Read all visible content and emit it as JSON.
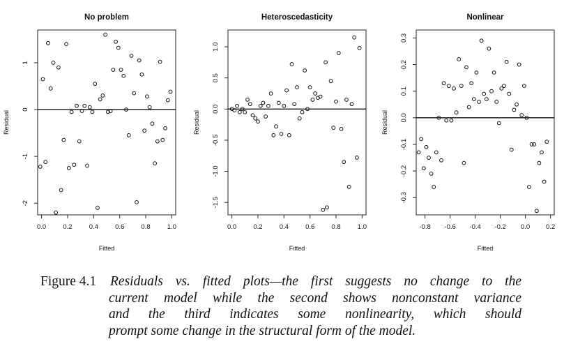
{
  "chart_data": [
    {
      "type": "scatter",
      "title": "No problem",
      "xlabel": "Fitted",
      "ylabel": "Residual",
      "xlim": [
        -0.03,
        1.03
      ],
      "ylim": [
        -2.25,
        1.7
      ],
      "xticks": [
        "0.0",
        "0.2",
        "0.4",
        "0.6",
        "0.8",
        "1.0"
      ],
      "xtick_values": [
        0,
        0.2,
        0.4,
        0.6,
        0.8,
        1.0
      ],
      "yticks": [
        "-2",
        "-1",
        "0",
        "1"
      ],
      "ytick_values": [
        -2,
        -1,
        0,
        1
      ],
      "reference_line_y": 0,
      "points": [
        [
          -0.01,
          -1.22
        ],
        [
          0.01,
          0.65
        ],
        [
          0.03,
          -1.12
        ],
        [
          0.05,
          1.42
        ],
        [
          0.07,
          0.45
        ],
        [
          0.09,
          1.0
        ],
        [
          0.11,
          -2.2
        ],
        [
          0.13,
          0.9
        ],
        [
          0.15,
          -1.72
        ],
        [
          0.17,
          -0.65
        ],
        [
          0.19,
          1.4
        ],
        [
          0.21,
          -1.25
        ],
        [
          0.23,
          -0.05
        ],
        [
          0.25,
          -1.18
        ],
        [
          0.27,
          0.08
        ],
        [
          0.29,
          -0.68
        ],
        [
          0.31,
          -0.03
        ],
        [
          0.33,
          0.08
        ],
        [
          0.35,
          -1.2
        ],
        [
          0.37,
          0.05
        ],
        [
          0.39,
          -0.05
        ],
        [
          0.41,
          0.55
        ],
        [
          0.43,
          -2.1
        ],
        [
          0.45,
          0.22
        ],
        [
          0.47,
          0.3
        ],
        [
          0.49,
          1.6
        ],
        [
          0.51,
          -0.05
        ],
        [
          0.53,
          -0.03
        ],
        [
          0.55,
          0.85
        ],
        [
          0.57,
          1.45
        ],
        [
          0.59,
          1.32
        ],
        [
          0.61,
          0.85
        ],
        [
          0.63,
          0.72
        ],
        [
          0.65,
          0.0
        ],
        [
          0.67,
          -0.55
        ],
        [
          0.69,
          1.15
        ],
        [
          0.71,
          0.35
        ],
        [
          0.73,
          -1.98
        ],
        [
          0.75,
          1.05
        ],
        [
          0.77,
          0.75
        ],
        [
          0.79,
          -0.45
        ],
        [
          0.81,
          0.28
        ],
        [
          0.83,
          0.05
        ],
        [
          0.85,
          -0.3
        ],
        [
          0.87,
          -1.15
        ],
        [
          0.89,
          -0.68
        ],
        [
          0.91,
          1.02
        ],
        [
          0.93,
          -0.65
        ],
        [
          0.95,
          -0.4
        ],
        [
          0.97,
          0.2
        ],
        [
          0.99,
          0.38
        ]
      ]
    },
    {
      "type": "scatter",
      "title": "Heteroscedasticity",
      "xlabel": "Fitted",
      "ylabel": "Residual",
      "xlim": [
        -0.03,
        1.03
      ],
      "ylim": [
        -1.7,
        1.27
      ],
      "xticks": [
        "0.0",
        "0.2",
        "0.4",
        "0.6",
        "0.8",
        "1.0"
      ],
      "xtick_values": [
        0,
        0.2,
        0.4,
        0.6,
        0.8,
        1.0
      ],
      "yticks": [
        "-1.5",
        "-1.0",
        "-0.5",
        "0.0",
        "0.5",
        "1.0"
      ],
      "ytick_values": [
        -1.5,
        -1.0,
        -0.5,
        0.0,
        0.5,
        1.0
      ],
      "reference_line_y": 0,
      "points": [
        [
          0.0,
          0.0
        ],
        [
          0.02,
          -0.02
        ],
        [
          0.04,
          0.05
        ],
        [
          0.06,
          -0.05
        ],
        [
          0.08,
          0.0
        ],
        [
          0.1,
          -0.05
        ],
        [
          0.12,
          0.15
        ],
        [
          0.14,
          0.08
        ],
        [
          0.16,
          -0.1
        ],
        [
          0.18,
          -0.15
        ],
        [
          0.2,
          -0.2
        ],
        [
          0.22,
          0.05
        ],
        [
          0.24,
          0.1
        ],
        [
          0.26,
          -0.12
        ],
        [
          0.28,
          0.05
        ],
        [
          0.3,
          0.25
        ],
        [
          0.32,
          -0.42
        ],
        [
          0.34,
          -0.28
        ],
        [
          0.36,
          0.1
        ],
        [
          0.38,
          -0.4
        ],
        [
          0.4,
          0.05
        ],
        [
          0.42,
          0.3
        ],
        [
          0.44,
          -0.42
        ],
        [
          0.46,
          0.72
        ],
        [
          0.48,
          0.08
        ],
        [
          0.5,
          0.35
        ],
        [
          0.52,
          -0.15
        ],
        [
          0.54,
          -0.05
        ],
        [
          0.56,
          0.62
        ],
        [
          0.58,
          0.0
        ],
        [
          0.6,
          0.35
        ],
        [
          0.62,
          0.15
        ],
        [
          0.64,
          0.25
        ],
        [
          0.66,
          0.18
        ],
        [
          0.68,
          0.2
        ],
        [
          0.7,
          -1.62
        ],
        [
          0.72,
          0.75
        ],
        [
          0.73,
          -1.58
        ],
        [
          0.76,
          0.45
        ],
        [
          0.78,
          -0.3
        ],
        [
          0.8,
          0.12
        ],
        [
          0.82,
          0.9
        ],
        [
          0.84,
          -0.32
        ],
        [
          0.86,
          -0.85
        ],
        [
          0.88,
          0.15
        ],
        [
          0.9,
          -1.25
        ],
        [
          0.92,
          0.08
        ],
        [
          0.94,
          1.15
        ],
        [
          0.96,
          -0.78
        ],
        [
          0.98,
          0.98
        ]
      ]
    },
    {
      "type": "scatter",
      "title": "Nonlinear",
      "xlabel": "Fitted",
      "ylabel": "Residual",
      "xlim": [
        -0.87,
        0.23
      ],
      "ylim": [
        -0.365,
        0.33
      ],
      "xticks": [
        "-0.8",
        "-0.6",
        "-0.4",
        "-0.2",
        "0.0",
        "0.2"
      ],
      "xtick_values": [
        -0.8,
        -0.6,
        -0.4,
        -0.2,
        0.0,
        0.2
      ],
      "yticks": [
        "-0.3",
        "-0.2",
        "-0.1",
        "0.0",
        "0.1",
        "0.2",
        "0.3"
      ],
      "ytick_values": [
        -0.3,
        -0.2,
        -0.1,
        0.0,
        0.1,
        0.2,
        0.3
      ],
      "reference_line_y": 0,
      "points": [
        [
          -0.85,
          -0.13
        ],
        [
          -0.83,
          -0.08
        ],
        [
          -0.81,
          -0.19
        ],
        [
          -0.79,
          -0.11
        ],
        [
          -0.77,
          -0.15
        ],
        [
          -0.75,
          -0.21
        ],
        [
          -0.73,
          -0.26
        ],
        [
          -0.71,
          -0.13
        ],
        [
          -0.69,
          0.0
        ],
        [
          -0.67,
          -0.16
        ],
        [
          -0.65,
          0.13
        ],
        [
          -0.63,
          -0.01
        ],
        [
          -0.61,
          0.12
        ],
        [
          -0.59,
          -0.01
        ],
        [
          -0.57,
          0.11
        ],
        [
          -0.55,
          0.02
        ],
        [
          -0.53,
          0.22
        ],
        [
          -0.51,
          0.12
        ],
        [
          -0.49,
          -0.17
        ],
        [
          -0.47,
          0.19
        ],
        [
          -0.45,
          0.04
        ],
        [
          -0.43,
          0.13
        ],
        [
          -0.41,
          0.07
        ],
        [
          -0.39,
          0.17
        ],
        [
          -0.37,
          0.06
        ],
        [
          -0.35,
          0.29
        ],
        [
          -0.33,
          0.09
        ],
        [
          -0.31,
          0.07
        ],
        [
          -0.29,
          0.26
        ],
        [
          -0.27,
          0.1
        ],
        [
          -0.25,
          0.17
        ],
        [
          -0.23,
          0.06
        ],
        [
          -0.21,
          -0.02
        ],
        [
          -0.19,
          0.11
        ],
        [
          -0.17,
          0.12
        ],
        [
          -0.15,
          0.21
        ],
        [
          -0.13,
          0.09
        ],
        [
          -0.11,
          -0.12
        ],
        [
          -0.09,
          0.03
        ],
        [
          -0.07,
          0.05
        ],
        [
          -0.05,
          0.2
        ],
        [
          -0.03,
          0.01
        ],
        [
          -0.01,
          0.12
        ],
        [
          0.01,
          0.0
        ],
        [
          0.03,
          -0.26
        ],
        [
          0.05,
          -0.1
        ],
        [
          0.07,
          -0.1
        ],
        [
          0.09,
          -0.35
        ],
        [
          0.11,
          -0.17
        ],
        [
          0.13,
          -0.13
        ],
        [
          0.15,
          -0.24
        ],
        [
          0.17,
          -0.09
        ]
      ]
    }
  ],
  "caption": {
    "label": "Figure 4.1",
    "line1": "Residuals vs. fitted plots—the first suggests no change to the",
    "line2": "current model while the second shows nonconstant variance",
    "line3": "and the third indicates some nonlinearity, which should",
    "line4": "prompt some change in the structural form of the model."
  }
}
